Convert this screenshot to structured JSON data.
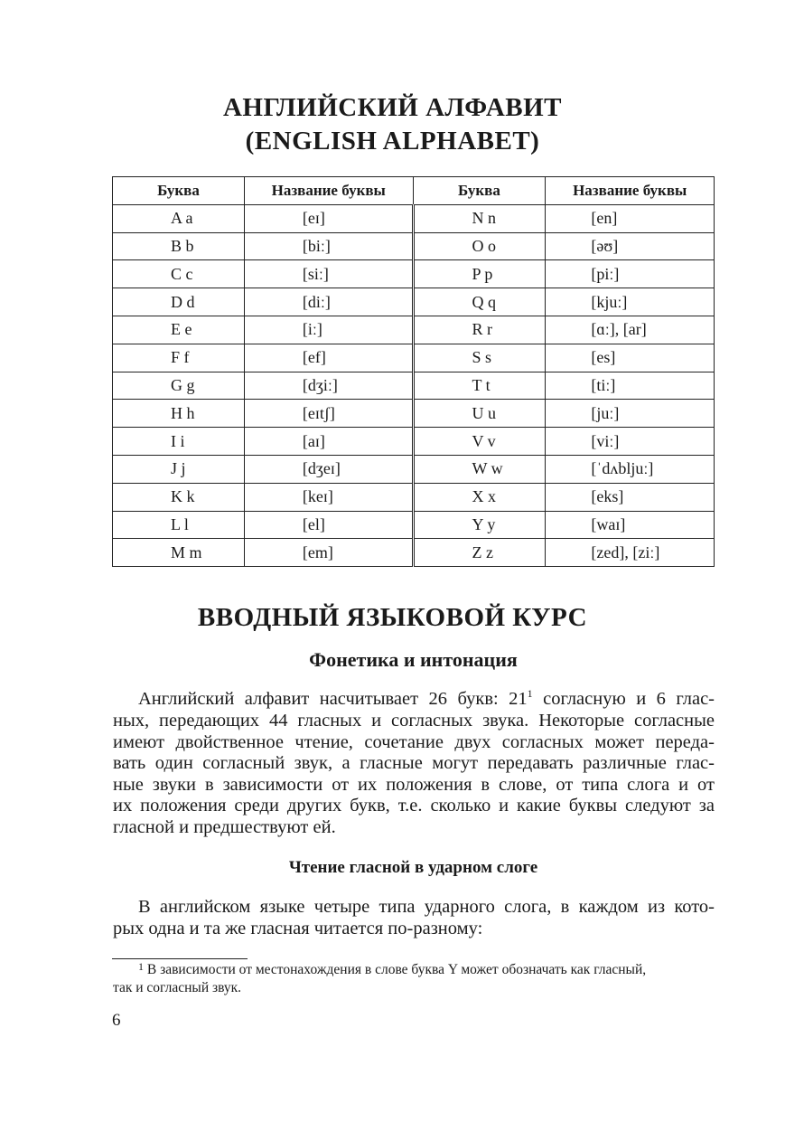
{
  "title_line1": "АНГЛИЙСКИЙ АЛФАВИТ",
  "title_line2": "(ENGLISH ALPHABET)",
  "table": {
    "headers": [
      "Буква",
      "Название буквы",
      "Буква",
      "Название буквы"
    ],
    "rows": [
      [
        "A a",
        "[eɪ]",
        "N n",
        "[en]"
      ],
      [
        "B b",
        "[biː]",
        "O o",
        "[əʊ]"
      ],
      [
        "C c",
        "[siː]",
        "P p",
        "[piː]"
      ],
      [
        "D d",
        "[diː]",
        "Q q",
        "[kjuː]"
      ],
      [
        "E e",
        "[iː]",
        "R r",
        "[ɑː], [ar]"
      ],
      [
        "F f",
        "[ef]",
        "S s",
        "[es]"
      ],
      [
        "G g",
        "[dʒiː]",
        "T t",
        "[tiː]"
      ],
      [
        "H h",
        "[eɪtʃ]",
        "U u",
        "[juː]"
      ],
      [
        "I i",
        "[aɪ]",
        "V v",
        "[viː]"
      ],
      [
        "J j",
        "[dʒeɪ]",
        "W w",
        "[ˈdʌbljuː]"
      ],
      [
        "K k",
        "[keɪ]",
        "X x",
        "[eks]"
      ],
      [
        "L l",
        "[el]",
        "Y y",
        "[waɪ]"
      ],
      [
        "M m",
        "[em]",
        "Z z",
        "[zed], [ziː]"
      ]
    ]
  },
  "section_title": "ВВОДНЫЙ ЯЗЫКОВОЙ КУРС",
  "subsection_title": "Фонетика и интонация",
  "paragraph1": {
    "line0_before": "Английский алфавит насчитывает 26 букв: 21",
    "footnote_ref": "1",
    "line0_after": " согласную и 6 глас-",
    "lines": [
      "ных, передающих 44 гласных и согласных звука. Некоторые согласные",
      "имеют двойственное чтение, сочетание двух согласных может переда-",
      "вать один согласный звук, а гласные могут передавать различные глас-",
      "ные звуки в зависимости от их положения в слове, от типа слога и от",
      "их положения среди других букв, т.е. сколько и какие буквы следуют за",
      "гласной и предшествуют ей."
    ]
  },
  "subheading": "Чтение гласной в ударном слоге",
  "paragraph2": {
    "lines": [
      "В английском языке четыре типа ударного слога, в каждом из кото-",
      "рых одна и та же гласная читается по-разному:"
    ]
  },
  "footnote": {
    "mark": "1",
    "line1": " В зависимости от местонахождения в слове буква Y может обозначать как гласный,",
    "line2": "так и согласный звук."
  },
  "page_number": "6"
}
